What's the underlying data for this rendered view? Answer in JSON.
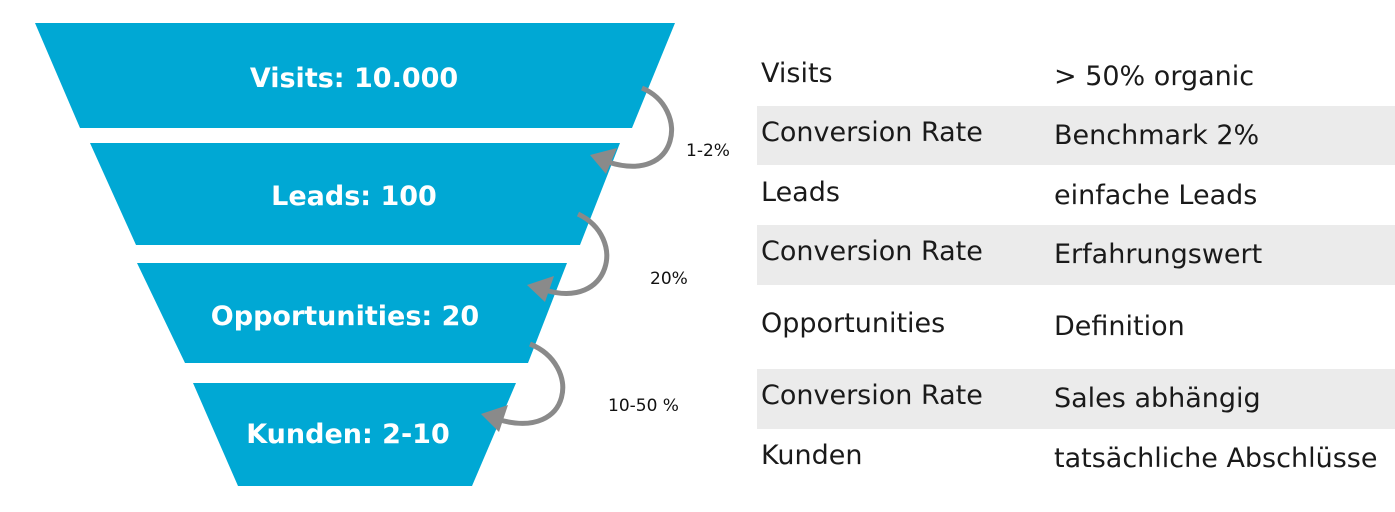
{
  "colors": {
    "funnel_fill": "#00a8d4",
    "arrow": "#8a8a8a",
    "row_shade": "#ebebeb"
  },
  "funnel": {
    "stages": [
      {
        "label": "Visits: 10.000"
      },
      {
        "label": "Leads: 100"
      },
      {
        "label": "Opportunities: 20"
      },
      {
        "label": "Kunden: 2-10"
      }
    ],
    "conversions": [
      {
        "label": "1-2%"
      },
      {
        "label": "20%"
      },
      {
        "label": "10-50 %"
      }
    ]
  },
  "table": {
    "rows": [
      {
        "key": "Visits",
        "value": "> 50% organic"
      },
      {
        "key": "Conversion Rate",
        "value": "Benchmark 2%"
      },
      {
        "key": "Leads",
        "value": "einfache Leads"
      },
      {
        "key": "Conversion Rate",
        "value": "Erfahrungswert"
      },
      {
        "key": "Opportunities",
        "value": "Definition"
      },
      {
        "key": "Conversion Rate",
        "value": "Sales abhängig"
      },
      {
        "key": "Kunden",
        "value": "tatsächliche Abschlüsse"
      }
    ]
  }
}
